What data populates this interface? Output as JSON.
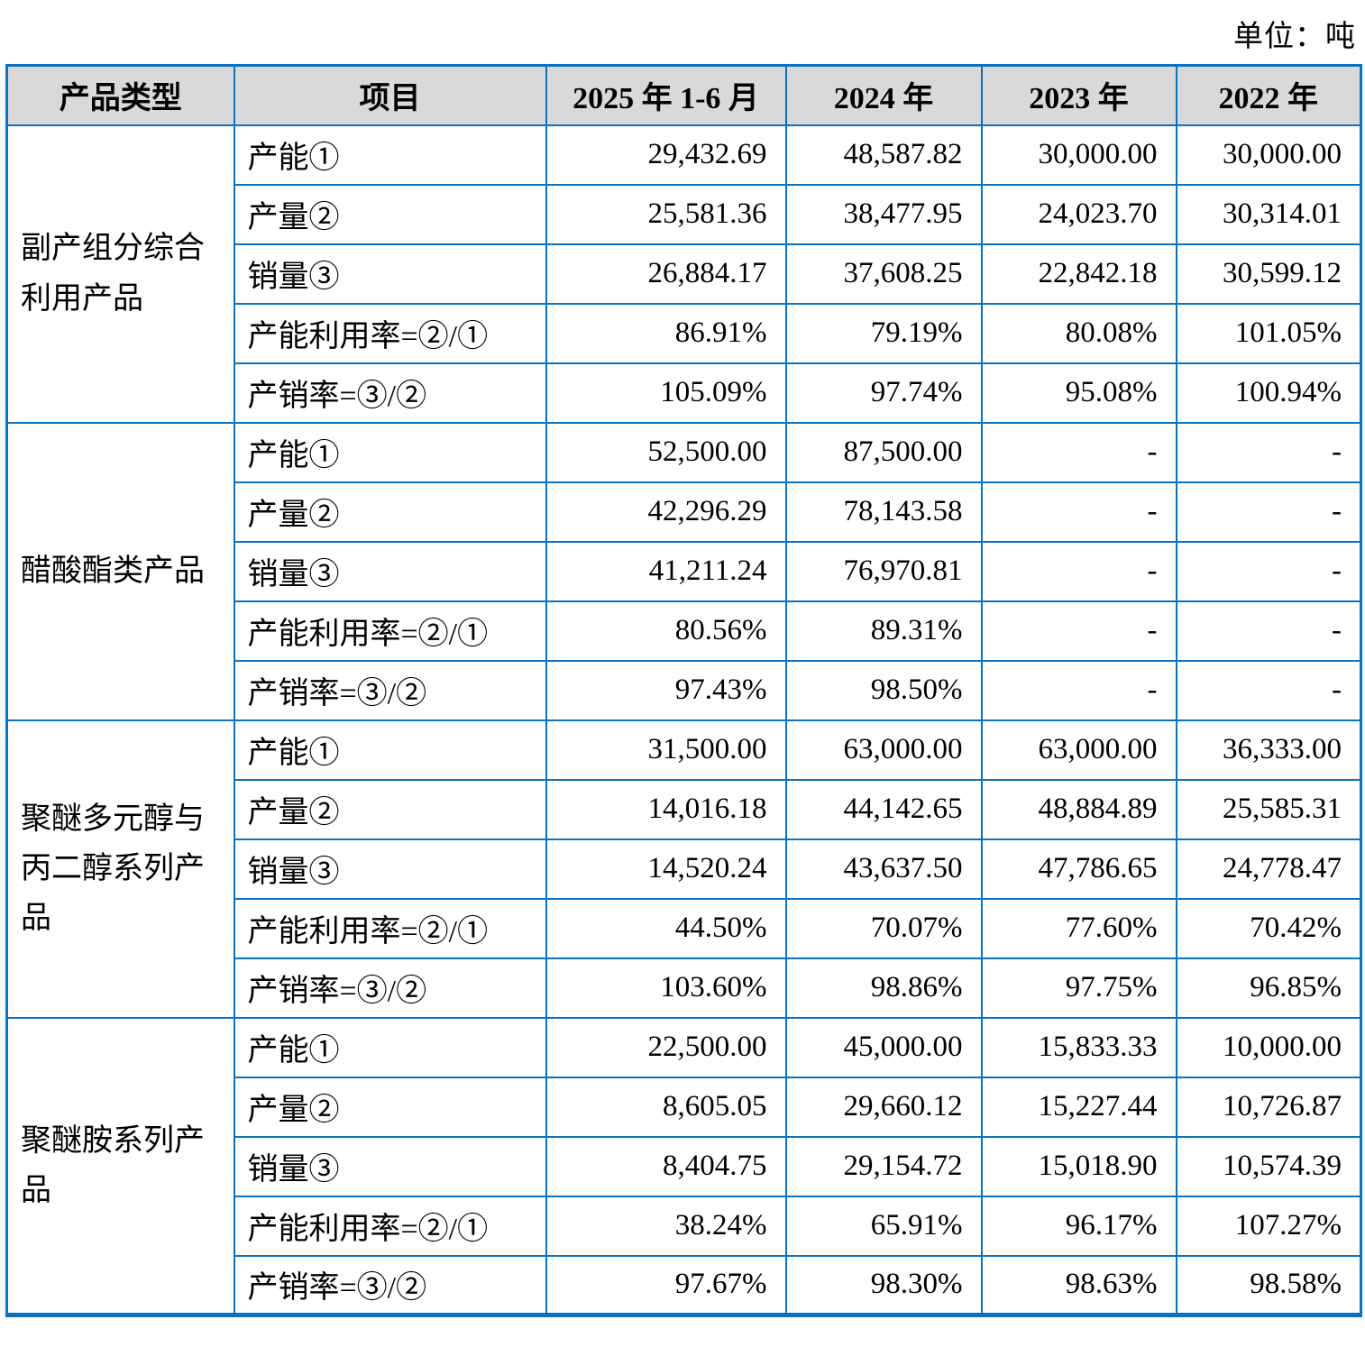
{
  "unit_label": "单位：吨",
  "colors": {
    "table_border": "#0b72c0",
    "header_background": "#d9d9d9",
    "text": "#000000"
  },
  "table": {
    "columns": [
      "产品类型",
      "项目",
      "2025 年 1-6 月",
      "2024 年",
      "2023 年",
      "2022 年"
    ],
    "groups": [
      {
        "product": "副产组分综合利用产品",
        "rows": [
          {
            "item": "产能①",
            "values": [
              "29,432.69",
              "48,587.82",
              "30,000.00",
              "30,000.00"
            ]
          },
          {
            "item": "产量②",
            "values": [
              "25,581.36",
              "38,477.95",
              "24,023.70",
              "30,314.01"
            ]
          },
          {
            "item": "销量③",
            "values": [
              "26,884.17",
              "37,608.25",
              "22,842.18",
              "30,599.12"
            ]
          },
          {
            "item": "产能利用率=②/①",
            "values": [
              "86.91%",
              "79.19%",
              "80.08%",
              "101.05%"
            ]
          },
          {
            "item": "产销率=③/②",
            "values": [
              "105.09%",
              "97.74%",
              "95.08%",
              "100.94%"
            ]
          }
        ]
      },
      {
        "product": "醋酸酯类产品",
        "rows": [
          {
            "item": "产能①",
            "values": [
              "52,500.00",
              "87,500.00",
              "-",
              "-"
            ]
          },
          {
            "item": "产量②",
            "values": [
              "42,296.29",
              "78,143.58",
              "-",
              "-"
            ]
          },
          {
            "item": "销量③",
            "values": [
              "41,211.24",
              "76,970.81",
              "-",
              "-"
            ]
          },
          {
            "item": "产能利用率=②/①",
            "values": [
              "80.56%",
              "89.31%",
              "-",
              "-"
            ]
          },
          {
            "item": "产销率=③/②",
            "values": [
              "97.43%",
              "98.50%",
              "-",
              "-"
            ]
          }
        ]
      },
      {
        "product": "聚醚多元醇与丙二醇系列产品",
        "rows": [
          {
            "item": "产能①",
            "values": [
              "31,500.00",
              "63,000.00",
              "63,000.00",
              "36,333.00"
            ]
          },
          {
            "item": "产量②",
            "values": [
              "14,016.18",
              "44,142.65",
              "48,884.89",
              "25,585.31"
            ]
          },
          {
            "item": "销量③",
            "values": [
              "14,520.24",
              "43,637.50",
              "47,786.65",
              "24,778.47"
            ]
          },
          {
            "item": "产能利用率=②/①",
            "values": [
              "44.50%",
              "70.07%",
              "77.60%",
              "70.42%"
            ]
          },
          {
            "item": "产销率=③/②",
            "values": [
              "103.60%",
              "98.86%",
              "97.75%",
              "96.85%"
            ]
          }
        ]
      },
      {
        "product": "聚醚胺系列产品",
        "rows": [
          {
            "item": "产能①",
            "values": [
              "22,500.00",
              "45,000.00",
              "15,833.33",
              "10,000.00"
            ]
          },
          {
            "item": "产量②",
            "values": [
              "8,605.05",
              "29,660.12",
              "15,227.44",
              "10,726.87"
            ]
          },
          {
            "item": "销量③",
            "values": [
              "8,404.75",
              "29,154.72",
              "15,018.90",
              "10,574.39"
            ]
          },
          {
            "item": "产能利用率=②/①",
            "values": [
              "38.24%",
              "65.91%",
              "96.17%",
              "107.27%"
            ]
          },
          {
            "item": "产销率=③/②",
            "values": [
              "97.67%",
              "98.30%",
              "98.63%",
              "98.58%"
            ]
          }
        ]
      }
    ]
  }
}
